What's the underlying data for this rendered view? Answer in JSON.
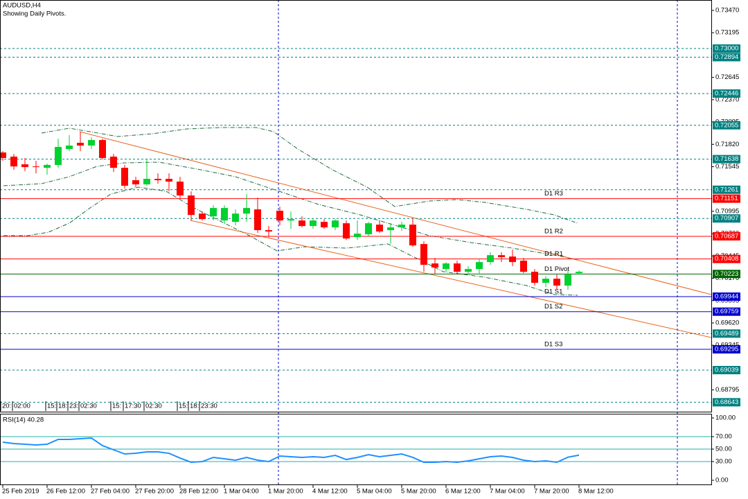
{
  "chart_data": [
    {
      "type": "candlestick",
      "title": "AUDUSD,H4",
      "subtitle": "Showing Daily Pivots.",
      "categories": [
        "25 Feb 2019",
        null,
        null,
        null,
        "26 Feb 12:00",
        null,
        null,
        null,
        "27 Feb 04:00",
        null,
        null,
        null,
        "27 Feb 20:00",
        null,
        null,
        null,
        "28 Feb 12:00",
        null,
        null,
        null,
        "1 Mar 04:00",
        null,
        null,
        null,
        "1 Mar 20:00",
        null,
        null,
        null,
        "4 Mar 12:00",
        null,
        null,
        null,
        "5 Mar 04:00",
        null,
        null,
        null,
        "5 Mar 20:00",
        null,
        null,
        null,
        "6 Mar 12:00",
        null,
        null,
        null,
        "7 Mar 04:00",
        null,
        null,
        null,
        "7 Mar 20:00",
        null,
        null,
        null,
        "8 Mar 12:00"
      ],
      "open": [
        0.7172,
        0.71669,
        0.71574,
        0.71548,
        0.71531,
        0.71566,
        0.71762,
        0.71839,
        0.71805,
        0.71873,
        0.71669,
        0.71531,
        0.71378,
        0.71327,
        0.71395,
        0.71395,
        0.71361,
        0.7119,
        0.70967,
        0.70933,
        0.70882,
        0.70865,
        0.70967,
        0.71019,
        0.70763,
        0.71002,
        0.70882,
        0.70882,
        0.70814,
        0.70865,
        0.70797,
        0.70848,
        0.70677,
        0.70712,
        0.70831,
        0.70763,
        0.70797,
        0.70831,
        0.70592,
        0.70353,
        0.70284,
        0.70353,
        0.7025,
        0.70284,
        0.7037,
        0.70455,
        0.70438,
        0.70387,
        0.7025,
        0.70114,
        0.70165,
        0.7008,
        0.70233
      ],
      "high": [
        0.71737,
        0.71703,
        0.71652,
        0.71617,
        0.71583,
        0.7189,
        0.71933,
        0.71975,
        0.71907,
        0.7189,
        0.71703,
        0.71566,
        0.7142,
        0.71634,
        0.71463,
        0.71463,
        0.7142,
        0.71241,
        0.70993,
        0.7107,
        0.7107,
        0.71019,
        0.71207,
        0.71164,
        0.70814,
        0.71053,
        0.70993,
        0.70933,
        0.70899,
        0.70899,
        0.70899,
        0.70882,
        0.70882,
        0.70865,
        0.70882,
        0.70848,
        0.70865,
        0.70908,
        0.70626,
        0.70421,
        0.7037,
        0.70387,
        0.70319,
        0.70404,
        0.7049,
        0.7049,
        0.70524,
        0.70421,
        0.70284,
        0.70199,
        0.70216,
        0.70267,
        0.70267
      ],
      "low": [
        0.71617,
        0.71506,
        0.71489,
        0.71463,
        0.71446,
        0.71531,
        0.71737,
        0.71737,
        0.71762,
        0.71634,
        0.7148,
        0.71275,
        0.71292,
        0.7131,
        0.71335,
        0.71241,
        0.71156,
        0.70882,
        0.70882,
        0.70882,
        0.70848,
        0.70822,
        0.70865,
        0.70729,
        0.70677,
        0.70822,
        0.7078,
        0.70797,
        0.7078,
        0.7078,
        0.70763,
        0.70643,
        0.70643,
        0.70694,
        0.70729,
        0.70592,
        0.70754,
        0.70558,
        0.7025,
        0.70225,
        0.7025,
        0.70216,
        0.70216,
        0.70216,
        0.70336,
        0.7037,
        0.70319,
        0.70233,
        0.7008,
        0.70062,
        0.70028,
        0.70028,
        0.70216
      ],
      "close": [
        0.71652,
        0.71548,
        0.7154,
        0.7154,
        0.71566,
        0.71788,
        0.71805,
        0.71805,
        0.71873,
        0.71652,
        0.71531,
        0.7131,
        0.71327,
        0.71395,
        0.71378,
        0.71361,
        0.7119,
        0.7095,
        0.70899,
        0.71036,
        0.71036,
        0.70967,
        0.71036,
        0.70763,
        0.70746,
        0.70882,
        0.70899,
        0.70814,
        0.70882,
        0.70797,
        0.70882,
        0.7066,
        0.7072,
        0.70848,
        0.70746,
        0.70797,
        0.70831,
        0.70575,
        0.70336,
        0.70302,
        0.70353,
        0.7025,
        0.70284,
        0.7037,
        0.70455,
        0.7043,
        0.7037,
        0.7025,
        0.70114,
        0.70165,
        0.7008,
        0.70216,
        0.7025
      ],
      "up_color": "#00d030",
      "down_color": "#ff0000",
      "ylim": [
        0.68527,
        0.73598
      ],
      "yticks": [
        {
          "value": 0.7347,
          "label": "0.73470"
        },
        {
          "value": 0.73195,
          "label": "0.73195"
        },
        {
          "value": 0.72645,
          "label": "0.72645"
        },
        {
          "value": 0.7237,
          "label": "0.72370"
        },
        {
          "value": 0.72095,
          "label": "0.72095"
        },
        {
          "value": 0.7182,
          "label": "0.71820"
        },
        {
          "value": 0.71545,
          "label": "0.71545"
        },
        {
          "value": 0.70995,
          "label": "0.70995"
        },
        {
          "value": 0.7072,
          "label": "0.70720"
        },
        {
          "value": 0.70445,
          "label": "0.70445"
        },
        {
          "value": 0.7017,
          "label": "0.70170"
        },
        {
          "value": 0.69895,
          "label": "0.69895"
        },
        {
          "value": 0.6962,
          "label": "0.69620"
        },
        {
          "value": 0.69345,
          "label": "0.69345"
        },
        {
          "value": 0.68795,
          "label": "0.68795"
        }
      ],
      "levels_color": "#008080",
      "levels": [
        {
          "value": 0.73,
          "label": "0.73000"
        },
        {
          "value": 0.72894,
          "label": "0.72894"
        },
        {
          "value": 0.72446,
          "label": "0.72446"
        },
        {
          "value": 0.72055,
          "label": "0.72055"
        },
        {
          "value": 0.71638,
          "label": "0.71638"
        },
        {
          "value": 0.71261,
          "label": "0.71261"
        },
        {
          "value": 0.70907,
          "label": "0.70907"
        },
        {
          "value": 0.69489,
          "label": "0.69489"
        },
        {
          "value": 0.69039,
          "label": "0.69039"
        },
        {
          "value": 0.68643,
          "label": "0.68643"
        }
      ],
      "pivots": [
        {
          "name": "D1 R3",
          "value": 0.71151,
          "label": "0.71151",
          "color": "#ff0000"
        },
        {
          "name": "D1 R2",
          "value": 0.70687,
          "label": "0.70687",
          "color": "#ff0000"
        },
        {
          "name": "D1 R1",
          "value": 0.70408,
          "label": "0.70408",
          "color": "#ff0000"
        },
        {
          "name": "D1 Pivot",
          "value": 0.70223,
          "label": "0.70223",
          "color": "#006400"
        },
        {
          "name": "D1 S1",
          "value": 0.69944,
          "label": "0.69944",
          "color": "#0000cc"
        },
        {
          "name": "D1 S2",
          "value": 0.69759,
          "label": "0.69759",
          "color": "#0000cc"
        },
        {
          "name": "D1 S3",
          "value": 0.69295,
          "label": "0.69295",
          "color": "#0000cc"
        }
      ],
      "time_markers": [
        "20:",
        "02:00",
        "15:",
        "18:",
        "23:",
        "02:30",
        "15:",
        "17:30",
        "02:30",
        "15:",
        "18:",
        "23:30"
      ]
    },
    {
      "type": "line",
      "title": "RSI(14) 40.28",
      "color": "#1e90ff",
      "values": [
        61.1,
        58.9,
        57.8,
        56.7,
        57.8,
        65.6,
        65.6,
        66.7,
        67.8,
        55.6,
        48.9,
        42.2,
        43.3,
        45.6,
        45.6,
        43.3,
        35.6,
        28.9,
        30,
        36.7,
        34.4,
        32.2,
        36.7,
        32.2,
        30,
        38.9,
        37.8,
        36.7,
        37.8,
        36.7,
        40,
        33.3,
        36.7,
        41.1,
        37.8,
        40,
        42.2,
        36.7,
        28.9,
        28.9,
        30,
        28.9,
        31.1,
        34.4,
        37.8,
        38.9,
        36.7,
        32.2,
        30,
        31.1,
        28.9,
        37,
        40.28
      ],
      "ylim": [
        -7.8,
        105.6
      ],
      "yticks": [
        {
          "value": 100,
          "label": "100.00"
        },
        {
          "value": 70,
          "label": "70.00"
        },
        {
          "value": 50,
          "label": "50.00"
        },
        {
          "value": 30,
          "label": "30.00"
        },
        {
          "value": 0,
          "label": "0.00"
        }
      ],
      "levels": [
        70,
        50,
        30
      ],
      "levels_color": "#20b2aa"
    }
  ]
}
